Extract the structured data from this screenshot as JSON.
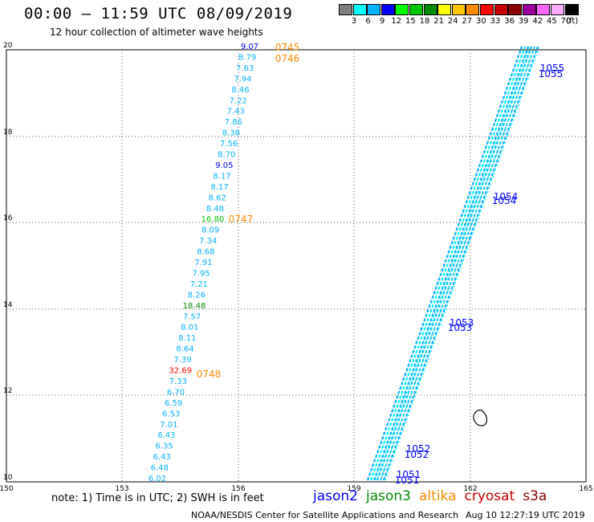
{
  "title": "00:00 – 11:59 UTC 08/09/2019",
  "subtitle": "12 hour collection of altimeter wave heights",
  "legend": {
    "unit": "(ft)",
    "items": [
      {
        "label": "3",
        "color": "#7f7f7f"
      },
      {
        "label": "6",
        "color": "#00ffff"
      },
      {
        "label": "9",
        "color": "#00b4ff"
      },
      {
        "label": "12",
        "color": "#0000ff"
      },
      {
        "label": "15",
        "color": "#00ff00"
      },
      {
        "label": "18",
        "color": "#00c800"
      },
      {
        "label": "21",
        "color": "#008c00"
      },
      {
        "label": "24",
        "color": "#ffff00"
      },
      {
        "label": "27",
        "color": "#ffc800"
      },
      {
        "label": "30",
        "color": "#ff8c00"
      },
      {
        "label": "33",
        "color": "#ff0000"
      },
      {
        "label": "36",
        "color": "#c80000"
      },
      {
        "label": "39",
        "color": "#8c0000"
      },
      {
        "label": "42",
        "color": "#a000a0"
      },
      {
        "label": "45",
        "color": "#ff64ff"
      },
      {
        "label": "70",
        "color": "#ffaaff"
      },
      {
        "label": "",
        "color": "#000000"
      }
    ]
  },
  "axes": {
    "x_ticks": [
      "150",
      "153",
      "156",
      "159",
      "162",
      "165"
    ],
    "y_ticks": [
      "20",
      "18",
      "16",
      "14",
      "12",
      "10"
    ]
  },
  "track_west": [
    {
      "v": "9.07",
      "c": "#0000ff"
    },
    {
      "v": "8.79",
      "c": "#00b4ff"
    },
    {
      "v": "7.63",
      "c": "#00b4ff"
    },
    {
      "v": "7.94",
      "c": "#00b4ff"
    },
    {
      "v": "8.46",
      "c": "#00b4ff"
    },
    {
      "v": "7.22",
      "c": "#00b4ff"
    },
    {
      "v": "7.43",
      "c": "#00b4ff"
    },
    {
      "v": "7.86",
      "c": "#00b4ff"
    },
    {
      "v": "8.38",
      "c": "#00b4ff"
    },
    {
      "v": "7.56",
      "c": "#00b4ff"
    },
    {
      "v": "8.70",
      "c": "#00b4ff"
    },
    {
      "v": "9.05",
      "c": "#0000ff"
    },
    {
      "v": "8.17",
      "c": "#00b4ff"
    },
    {
      "v": "8.17",
      "c": "#00b4ff"
    },
    {
      "v": "8.62",
      "c": "#00b4ff"
    },
    {
      "v": "8.48",
      "c": "#00b4ff"
    },
    {
      "v": "16.80",
      "c": "#00c800"
    },
    {
      "v": "8.09",
      "c": "#00b4ff"
    },
    {
      "v": "7.34",
      "c": "#00b4ff"
    },
    {
      "v": "8.68",
      "c": "#00b4ff"
    },
    {
      "v": "7.91",
      "c": "#00b4ff"
    },
    {
      "v": "7.95",
      "c": "#00b4ff"
    },
    {
      "v": "7.21",
      "c": "#00b4ff"
    },
    {
      "v": "8.26",
      "c": "#00b4ff"
    },
    {
      "v": "18.48",
      "c": "#008c00"
    },
    {
      "v": "7.57",
      "c": "#00b4ff"
    },
    {
      "v": "8.01",
      "c": "#00b4ff"
    },
    {
      "v": "8.11",
      "c": "#00b4ff"
    },
    {
      "v": "8.64",
      "c": "#00b4ff"
    },
    {
      "v": "7.39",
      "c": "#00b4ff"
    },
    {
      "v": "32.69",
      "c": "#ff0000"
    },
    {
      "v": "7.33",
      "c": "#00b4ff"
    },
    {
      "v": "6.70",
      "c": "#00b4ff"
    },
    {
      "v": "6.59",
      "c": "#00b4ff"
    },
    {
      "v": "6.53",
      "c": "#00b4ff"
    },
    {
      "v": "7.01",
      "c": "#00b4ff"
    },
    {
      "v": "6.43",
      "c": "#00b4ff"
    },
    {
      "v": "6.35",
      "c": "#00b4ff"
    },
    {
      "v": "6.43",
      "c": "#00b4ff"
    },
    {
      "v": "6.48",
      "c": "#00b4ff"
    },
    {
      "v": "6.02",
      "c": "#00b4ff"
    }
  ],
  "west_times": [
    "0745",
    "0746",
    "0747",
    "0748"
  ],
  "east_times": [
    "1055",
    "1055",
    "1054",
    "1054",
    "1053",
    "1053",
    "1052",
    "1052",
    "1051",
    "1051"
  ],
  "footer": {
    "note": "note: 1) Time is in UTC; 2) SWH is in feet",
    "satellites": [
      {
        "name": "jason2",
        "color": "#0000ff"
      },
      {
        "name": "jason3",
        "color": "#008c00"
      },
      {
        "name": "altika",
        "color": "#ff8c00"
      },
      {
        "name": "cryosat",
        "color": "#c80000"
      },
      {
        "name": "s3a",
        "color": "#8c0000"
      }
    ],
    "credit": "NOAA/NESDIS Center for Satellite Applications and Research",
    "stamp": "Aug 10 12:27:19 UTC 2019"
  }
}
